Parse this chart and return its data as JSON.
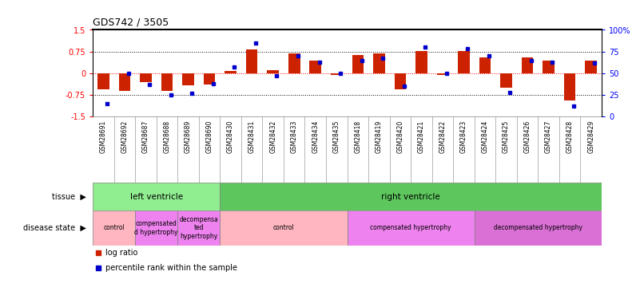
{
  "title": "GDS742 / 3505",
  "samples": [
    "GSM28691",
    "GSM28692",
    "GSM28687",
    "GSM28688",
    "GSM28689",
    "GSM28690",
    "GSM28430",
    "GSM28431",
    "GSM28432",
    "GSM28433",
    "GSM28434",
    "GSM28435",
    "GSM28418",
    "GSM28419",
    "GSM28420",
    "GSM28421",
    "GSM28422",
    "GSM28423",
    "GSM28424",
    "GSM28425",
    "GSM28426",
    "GSM28427",
    "GSM28428",
    "GSM28429"
  ],
  "log_ratio": [
    -0.55,
    -0.6,
    -0.32,
    -0.62,
    -0.42,
    -0.38,
    0.08,
    0.82,
    0.12,
    0.68,
    0.45,
    -0.06,
    0.62,
    0.68,
    -0.55,
    0.78,
    -0.05,
    0.78,
    0.55,
    -0.5,
    0.55,
    0.45,
    -0.95,
    0.45
  ],
  "percentile": [
    15,
    50,
    37,
    25,
    27,
    38,
    57,
    85,
    47,
    70,
    63,
    50,
    65,
    67,
    35,
    80,
    50,
    78,
    70,
    28,
    65,
    63,
    12,
    62
  ],
  "tissue_groups": [
    {
      "label": "left ventricle",
      "start": 0,
      "end": 6,
      "color": "#90EE90"
    },
    {
      "label": "right ventricle",
      "start": 6,
      "end": 24,
      "color": "#5DC65D"
    }
  ],
  "disease_groups": [
    {
      "label": "control",
      "start": 0,
      "end": 2,
      "color": "#FFB6C1"
    },
    {
      "label": "compensated\nd hypertrophy",
      "start": 2,
      "end": 4,
      "color": "#EE82EE"
    },
    {
      "label": "decompensa\nted\nhypertrophy",
      "start": 4,
      "end": 6,
      "color": "#EE82EE"
    },
    {
      "label": "control",
      "start": 6,
      "end": 12,
      "color": "#FFB6C1"
    },
    {
      "label": "compensated hypertrophy",
      "start": 12,
      "end": 18,
      "color": "#EE82EE"
    },
    {
      "label": "decompensated hypertrophy",
      "start": 18,
      "end": 24,
      "color": "#DA70D6"
    }
  ],
  "ylim": [
    -1.5,
    1.5
  ],
  "bar_color": "#CC2200",
  "dot_color": "#0000CC",
  "grid_vals": [
    0.75,
    -0.75
  ],
  "left_ticks": [
    -1.5,
    -0.75,
    0,
    0.75,
    1.5
  ],
  "right_ticks": [
    0,
    25,
    50,
    75,
    100
  ],
  "right_tick_labels": [
    "0",
    "25",
    "50",
    "75",
    "100%"
  ],
  "legend_items": [
    {
      "color": "#CC2200",
      "label": "log ratio"
    },
    {
      "color": "#0000CC",
      "label": "percentile rank within the sample"
    }
  ],
  "background_color": "#ffffff",
  "xtick_bg": "#D3D3D3"
}
